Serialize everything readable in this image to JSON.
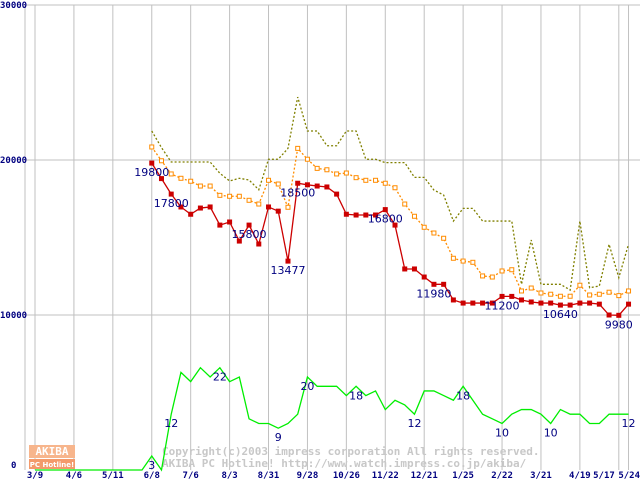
{
  "chart_data": {
    "type": "line",
    "title": "",
    "xlabel": "",
    "ylabel": "",
    "ylim": [
      0,
      30000
    ],
    "y2lim": [
      0,
      100
    ],
    "grid": true,
    "yticks": [
      "0",
      "10000",
      "20000",
      "30000"
    ],
    "xticks": [
      {
        "label": "3/9",
        "i": 0
      },
      {
        "label": "4/6",
        "i": 4
      },
      {
        "label": "5/11",
        "i": 8
      },
      {
        "label": "6/8",
        "i": 12
      },
      {
        "label": "7/6",
        "i": 16
      },
      {
        "label": "8/3",
        "i": 20
      },
      {
        "label": "8/31",
        "i": 24
      },
      {
        "label": "9/28",
        "i": 28
      },
      {
        "label": "10/26",
        "i": 32
      },
      {
        "label": "11/22",
        "i": 36
      },
      {
        "label": "12/21",
        "i": 40
      },
      {
        "label": "1/25",
        "i": 44
      },
      {
        "label": "2/22",
        "i": 48
      },
      {
        "label": "3/21",
        "i": 52
      },
      {
        "label": "4/19",
        "i": 56
      },
      {
        "label": "5/17",
        "i": 60
      },
      {
        "label": "5/24",
        "i": 61
      }
    ],
    "series": [
      {
        "name": "max",
        "color": "#808000",
        "style": "dotted",
        "markers": false,
        "start": 12,
        "axis": "price",
        "values": [
          21870,
          20800,
          19870,
          19870,
          19870,
          19870,
          19870,
          19140,
          18650,
          18820,
          18710,
          18080,
          20050,
          20050,
          20750,
          24060,
          21870,
          21870,
          20920,
          20920,
          21870,
          21870,
          20050,
          20050,
          19830,
          19830,
          19830,
          18880,
          18880,
          18060,
          17740,
          16060,
          16880,
          16880,
          16060,
          16060,
          16060,
          16060,
          11980,
          14840,
          11980,
          11980,
          11980,
          11610,
          16060,
          11760,
          11870,
          14560,
          12410,
          14560
        ]
      },
      {
        "name": "average",
        "color": "#ff8c00",
        "style": "dotted",
        "markers": "hollow",
        "start": 12,
        "axis": "price",
        "values": [
          20840,
          19950,
          19100,
          18820,
          18630,
          18320,
          18320,
          17720,
          17660,
          17660,
          17400,
          17160,
          18690,
          18450,
          16950,
          20750,
          20050,
          19460,
          19370,
          19100,
          19160,
          18860,
          18690,
          18690,
          18500,
          18210,
          17160,
          16370,
          15660,
          15290,
          14950,
          13660,
          13480,
          13400,
          12520,
          12450,
          12840,
          12920,
          11550,
          11740,
          11420,
          11340,
          11210,
          11210,
          11920,
          11290,
          11340,
          11470,
          11250,
          11550
        ]
      },
      {
        "name": "min",
        "color": "#cc0000",
        "style": "solid",
        "markers": "filled",
        "start": 12,
        "axis": "price",
        "values": [
          19800,
          18800,
          17800,
          16970,
          16500,
          16900,
          16970,
          15800,
          16000,
          14770,
          15800,
          14580,
          16970,
          16700,
          13477,
          18500,
          18400,
          18320,
          18260,
          17800,
          16500,
          16450,
          16450,
          16450,
          16800,
          15800,
          12970,
          12970,
          12450,
          11980,
          11980,
          10970,
          10770,
          10770,
          10770,
          10770,
          11200,
          11200,
          10970,
          10840,
          10770,
          10770,
          10640,
          10640,
          10770,
          10770,
          10700,
          10000,
          9980,
          10700
        ]
      },
      {
        "name": "shops",
        "color": "#00ee00",
        "style": "solid",
        "markers": false,
        "start": 0,
        "axis": "count",
        "values": [
          0,
          0,
          0,
          0,
          0,
          0,
          0,
          0,
          0,
          0,
          0,
          0,
          3,
          0,
          12,
          21,
          19,
          22,
          20,
          22,
          19,
          20,
          11,
          10,
          10,
          9,
          10,
          12,
          20,
          18,
          18,
          18,
          16,
          18,
          16,
          17,
          13,
          15,
          14,
          12,
          17,
          17,
          16,
          15,
          18,
          15,
          12,
          11,
          10,
          12,
          13,
          13,
          12,
          10,
          13,
          12,
          12,
          10,
          10,
          12,
          12,
          12
        ]
      }
    ],
    "data_labels": [
      {
        "series": "min",
        "i": 12,
        "text": "19800"
      },
      {
        "series": "min",
        "i": 14,
        "text": "17800"
      },
      {
        "series": "min",
        "i": 22,
        "text": "15800"
      },
      {
        "series": "min",
        "i": 26,
        "text": "13477"
      },
      {
        "series": "min",
        "i": 27,
        "text": "18500"
      },
      {
        "series": "min",
        "i": 36,
        "text": "16800"
      },
      {
        "series": "min",
        "i": 41,
        "text": "11980"
      },
      {
        "series": "min",
        "i": 48,
        "text": "11200"
      },
      {
        "series": "min",
        "i": 54,
        "text": "10640"
      },
      {
        "series": "min",
        "i": 60,
        "text": "9980"
      },
      {
        "series": "shops",
        "i": 12,
        "text": "3"
      },
      {
        "series": "shops",
        "i": 14,
        "text": "12"
      },
      {
        "series": "shops",
        "i": 19,
        "text": "22"
      },
      {
        "series": "shops",
        "i": 25,
        "text": "9"
      },
      {
        "series": "shops",
        "i": 28,
        "text": "20"
      },
      {
        "series": "shops",
        "i": 33,
        "text": "18"
      },
      {
        "series": "shops",
        "i": 39,
        "text": "12"
      },
      {
        "series": "shops",
        "i": 44,
        "text": "18"
      },
      {
        "series": "shops",
        "i": 48,
        "text": "10"
      },
      {
        "series": "shops",
        "i": 53,
        "text": "10"
      },
      {
        "series": "shops",
        "i": 61,
        "text": "12"
      }
    ]
  },
  "watermark": {
    "logo_top": "AKIBA",
    "logo_bottom": "PC Hotline!",
    "copyright": "Copyright(c)2003 impress corporation All rights reserved.",
    "site": "AKIBA PC Hotline!  http://www.watch.impress.co.jp/akiba/"
  }
}
